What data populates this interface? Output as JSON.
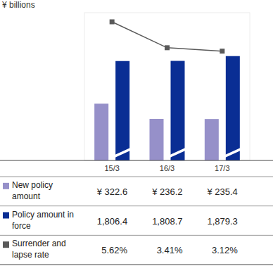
{
  "chart_data": [
    {
      "type": "bar",
      "y_label": "¥ billions",
      "categories": [
        "15/3",
        "16/3",
        "17/3"
      ],
      "series": [
        {
          "name": "New policy amount",
          "color": "#9690c9",
          "values": [
            322.6,
            236.2,
            235.4
          ],
          "value_labels": [
            "¥ 322.6",
            "¥ 236.2",
            "¥ 235.4"
          ]
        },
        {
          "name": "Policy amount in force",
          "color": "#0a2e94",
          "axis": "y2",
          "values": [
            1806.4,
            1808.7,
            1879.3
          ],
          "value_labels": [
            "1,806.4",
            "1,808.7",
            "1,879.3"
          ]
        }
      ],
      "ylim": [
        0,
        840
      ],
      "y2lim": [
        340,
        2520
      ],
      "tick_labels": "x",
      "data_labels": true,
      "legend": "bottom"
    },
    {
      "type": "line",
      "categories": [
        "15/3",
        "16/3",
        "17/3"
      ],
      "series": [
        {
          "name": "Surrender and lapse rate",
          "color": "#5a5a5a",
          "marker": "square",
          "values": [
            5.62,
            3.41,
            3.12
          ],
          "value_labels": [
            "5.62%",
            "3.41%",
            "3.12%"
          ]
        }
      ],
      "ylim": [
        -6.2,
        6.4
      ],
      "tick_labels": false,
      "data_labels": true,
      "legend": "bottom"
    }
  ]
}
